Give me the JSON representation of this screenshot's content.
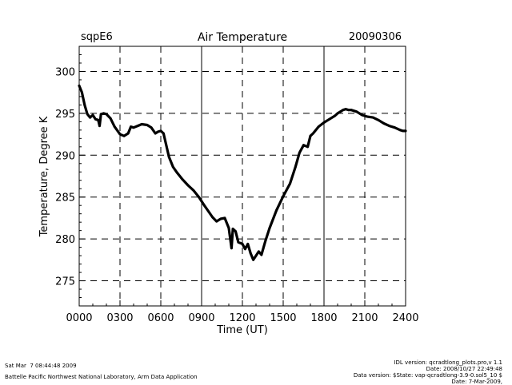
{
  "chart_data": {
    "type": "line",
    "site": "sqpE6",
    "title": "Air Temperature",
    "date": "20090306",
    "xlabel": "Time (UT)",
    "ylabel": "Temperature, Degree K",
    "xlim": [
      0,
      2400
    ],
    "ylim": [
      272,
      303
    ],
    "x_ticks": [
      0,
      300,
      600,
      900,
      1200,
      1500,
      1800,
      2100,
      2400
    ],
    "x_tick_labels": [
      "0000",
      "0300",
      "0600",
      "0900",
      "1200",
      "1500",
      "1800",
      "2100",
      "2400"
    ],
    "y_ticks": [
      275,
      280,
      285,
      290,
      295,
      300
    ],
    "y_tick_labels": [
      "275",
      "280",
      "285",
      "290",
      "295",
      "300"
    ],
    "grid": true,
    "series": [
      {
        "name": "Air Temperature",
        "x": [
          0,
          20,
          40,
          60,
          80,
          100,
          120,
          140,
          150,
          160,
          180,
          200,
          230,
          260,
          300,
          330,
          360,
          380,
          400,
          430,
          460,
          500,
          530,
          560,
          580,
          600,
          620,
          640,
          660,
          690,
          720,
          760,
          800,
          840,
          880,
          920,
          950,
          980,
          1010,
          1040,
          1070,
          1100,
          1110,
          1120,
          1130,
          1150,
          1170,
          1200,
          1220,
          1240,
          1260,
          1280,
          1300,
          1320,
          1340,
          1370,
          1400,
          1450,
          1500,
          1550,
          1590,
          1620,
          1650,
          1680,
          1700,
          1720,
          1760,
          1800,
          1840,
          1880,
          1900,
          1920,
          1940,
          1960,
          1980,
          2000,
          2040,
          2080,
          2120,
          2160,
          2200,
          2240,
          2280,
          2320,
          2360,
          2380,
          2400
        ],
        "y": [
          298.3,
          297.5,
          296.0,
          294.9,
          294.5,
          294.8,
          294.3,
          294.2,
          293.5,
          294.9,
          295.0,
          294.9,
          294.4,
          293.4,
          292.5,
          292.3,
          292.6,
          293.4,
          293.3,
          293.5,
          293.7,
          293.6,
          293.3,
          292.6,
          292.8,
          292.9,
          292.6,
          291.2,
          289.8,
          288.6,
          287.9,
          287.1,
          286.4,
          285.8,
          285.0,
          284.0,
          283.3,
          282.6,
          282.1,
          282.4,
          282.5,
          281.3,
          280.1,
          278.9,
          281.2,
          280.9,
          279.6,
          279.4,
          278.8,
          279.4,
          278.3,
          277.5,
          278.0,
          278.5,
          278.1,
          279.8,
          281.3,
          283.4,
          285.1,
          286.6,
          288.6,
          290.3,
          291.2,
          291.0,
          292.3,
          292.6,
          293.4,
          293.9,
          294.3,
          294.7,
          295.0,
          295.2,
          295.4,
          295.5,
          295.4,
          295.4,
          295.2,
          294.8,
          294.6,
          294.5,
          294.2,
          293.8,
          293.5,
          293.3,
          293.0,
          292.9,
          292.9
        ]
      }
    ]
  },
  "footer": {
    "timestamp": "Sat Mar  7 08:44:48 2009",
    "organization": "Battelle Pacific Northwest National Laboratory, Arm Data Application",
    "idl_version": "IDL version: qcradtlong_plots.pro,v 1.1",
    "idl_date": "Date: 2008/10/27 22:49:48",
    "data_version": "Data version: $State: vap-qcradtlong-3.9-0.sol5_10 $",
    "data_date": "Date: 7-Mar-2009,"
  }
}
